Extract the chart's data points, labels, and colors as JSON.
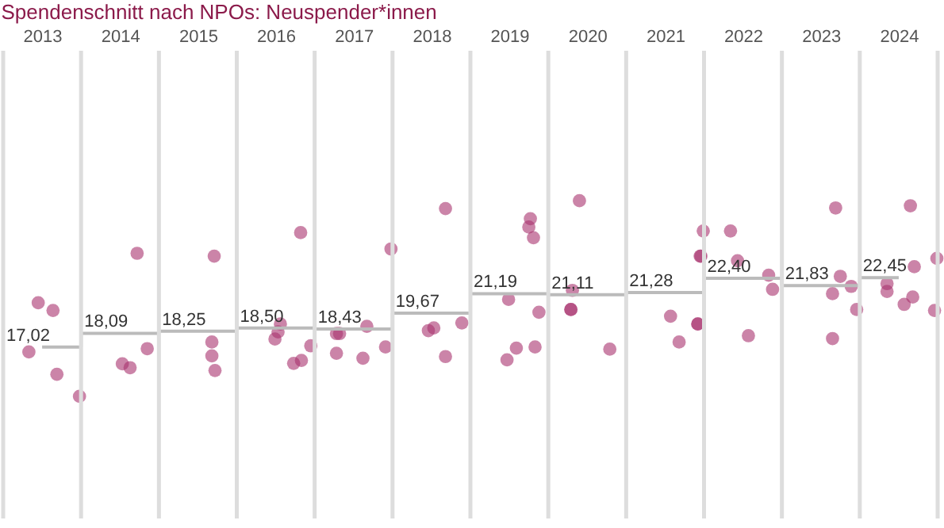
{
  "chart_data": {
    "type": "scatter",
    "title": "Spendenschnitt nach NPOs: Neuspender*innen",
    "xlim": [
      2012.5,
      2024.5
    ],
    "xticks": [
      2013,
      2014,
      2015,
      2016,
      2017,
      2018,
      2019,
      2020,
      2021,
      2022,
      2023,
      2024
    ],
    "ylim": [
      3.6,
      40.2
    ],
    "tick_labels": "x",
    "series": [
      {
        "color": "#a8326e",
        "marker": "circle",
        "x": [
          2012.95,
          2013.14,
          2012.83,
          2013.19,
          2013.48,
          2014.22,
          2014.03,
          2014.13,
          2014.35,
          2015.21,
          2015.18,
          2015.18,
          2015.22,
          2016.32,
          2015.99,
          2016.03,
          2016.06,
          2016.45,
          2016.33,
          2016.23,
          2017.48,
          2016.82,
          2016.78,
          2017.17,
          2016.78,
          2017.12,
          2017.41,
          2018.18,
          2017.96,
          2018.03,
          2018.39,
          2018.18,
          2019.27,
          2019.25,
          2019.31,
          2018.99,
          2019.38,
          2019.09,
          2019.33,
          2018.97,
          2019.9,
          2019.81,
          2019.79,
          2019.79,
          2020.29,
          2021.49,
          2021.45,
          2021.46,
          2021.07,
          2021.42,
          2021.42,
          2021.18,
          2021.84,
          2021.93,
          2022.33,
          2022.38,
          2022.07,
          2023.19,
          2023.25,
          2023.15,
          2023.39,
          2023.46,
          2023.15,
          2024.15,
          2024.49,
          2024.2,
          2023.85,
          2023.85,
          2024.18,
          2024.07,
          2024.46
        ],
        "values": [
          20.48,
          19.88,
          16.63,
          14.88,
          13.16,
          24.35,
          15.7,
          15.4,
          16.89,
          24.13,
          17.41,
          16.32,
          15.18,
          25.97,
          17.64,
          18.2,
          18.82,
          17.11,
          15.97,
          15.74,
          24.69,
          18.07,
          18.07,
          18.64,
          16.53,
          16.14,
          17.02,
          27.85,
          18.3,
          18.51,
          18.9,
          16.27,
          27.06,
          26.4,
          25.57,
          20.74,
          19.74,
          16.93,
          17.02,
          16.01,
          28.47,
          21.45,
          19.95,
          19.95,
          16.85,
          26.1,
          24.13,
          24.13,
          19.43,
          18.82,
          18.82,
          17.41,
          26.1,
          23.77,
          22.64,
          21.53,
          17.9,
          27.9,
          22.55,
          21.19,
          21.76,
          19.95,
          17.68,
          28.07,
          23.95,
          23.3,
          21.98,
          21.36,
          20.93,
          20.35,
          19.88
        ]
      },
      {
        "type": "step",
        "line_style": "solid",
        "marker": "none",
        "color": "#bbbbbb",
        "x": [
          2013,
          2014,
          2015,
          2016,
          2017,
          2018,
          2019,
          2020,
          2021,
          2022,
          2023,
          2024
        ],
        "values": [
          17.02,
          18.09,
          18.25,
          18.5,
          18.43,
          19.67,
          21.19,
          21.11,
          21.28,
          22.4,
          21.83,
          22.45
        ],
        "value_labels": [
          "17,02",
          "18,09",
          "18,25",
          "18,50",
          "18,43",
          "19,67",
          "21,19",
          "21,11",
          "21,28",
          "22,40",
          "21,83",
          "22,45"
        ]
      }
    ]
  }
}
